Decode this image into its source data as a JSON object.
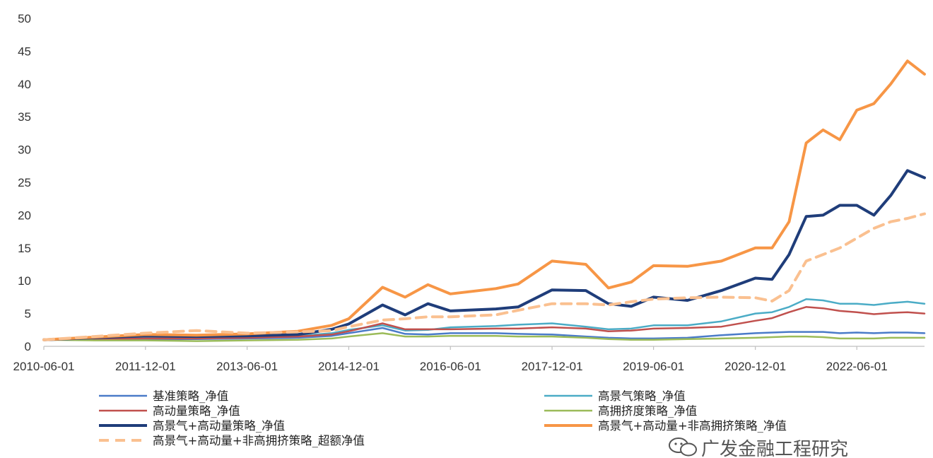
{
  "chart_data": {
    "type": "line",
    "title": "",
    "xlabel": "",
    "ylabel": "",
    "ylim": [
      0,
      50
    ],
    "yticks": [
      0,
      5,
      10,
      15,
      20,
      25,
      30,
      35,
      40,
      45,
      50
    ],
    "x_tick_labels": [
      "2010-06-01",
      "2011-12-01",
      "2013-06-01",
      "2014-12-01",
      "2016-06-01",
      "2017-12-01",
      "2019-06-01",
      "2020-12-01",
      "2022-06-01"
    ],
    "grid": false,
    "legend_position": "bottom",
    "x": [
      "2010-06-01",
      "2011-03-01",
      "2011-12-01",
      "2012-09-01",
      "2013-06-01",
      "2014-03-01",
      "2014-09-01",
      "2014-12-01",
      "2015-06-01",
      "2015-10-01",
      "2016-02-01",
      "2016-06-01",
      "2017-02-01",
      "2017-06-01",
      "2017-12-01",
      "2018-06-01",
      "2018-10-01",
      "2019-02-01",
      "2019-06-01",
      "2019-12-01",
      "2020-06-01",
      "2020-12-01",
      "2021-03-01",
      "2021-06-01",
      "2021-09-01",
      "2021-12-01",
      "2022-03-01",
      "2022-06-01",
      "2022-09-01",
      "2022-12-01",
      "2023-03-01",
      "2023-06-01"
    ],
    "series": [
      {
        "name": "基准策略_净值",
        "color": "#4a7bc8",
        "dash": false,
        "width": 2.5,
        "values": [
          1.0,
          1.0,
          1.1,
          1.1,
          1.2,
          1.3,
          1.6,
          2.0,
          2.8,
          1.9,
          1.8,
          2.0,
          2.0,
          1.9,
          1.8,
          1.5,
          1.3,
          1.2,
          1.2,
          1.3,
          1.7,
          2.0,
          2.1,
          2.2,
          2.2,
          2.2,
          2.0,
          2.1,
          2.0,
          2.1,
          2.1,
          2.0
        ]
      },
      {
        "name": "高景气策略_净值",
        "color": "#4bacc6",
        "dash": false,
        "width": 2.5,
        "values": [
          1.0,
          1.1,
          1.3,
          1.3,
          1.4,
          1.6,
          2.0,
          2.5,
          3.2,
          2.4,
          2.5,
          2.9,
          3.1,
          3.3,
          3.5,
          3.0,
          2.6,
          2.7,
          3.2,
          3.2,
          3.8,
          5.0,
          5.2,
          6.0,
          7.2,
          7.0,
          6.5,
          6.5,
          6.3,
          6.6,
          6.8,
          6.5
        ]
      },
      {
        "name": "高动量策略_净值",
        "color": "#c0504d",
        "dash": false,
        "width": 2.5,
        "values": [
          1.0,
          1.1,
          1.2,
          1.2,
          1.3,
          1.5,
          1.8,
          2.3,
          3.5,
          2.6,
          2.6,
          2.6,
          2.7,
          2.7,
          2.9,
          2.7,
          2.3,
          2.4,
          2.7,
          2.8,
          3.0,
          3.9,
          4.3,
          5.2,
          6.0,
          5.8,
          5.4,
          5.2,
          4.9,
          5.1,
          5.2,
          5.0
        ]
      },
      {
        "name": "高拥挤度策略_净值",
        "color": "#9bbb59",
        "dash": false,
        "width": 2.5,
        "values": [
          1.0,
          0.9,
          0.9,
          0.8,
          0.9,
          1.0,
          1.2,
          1.5,
          2.0,
          1.5,
          1.5,
          1.6,
          1.6,
          1.5,
          1.5,
          1.3,
          1.1,
          1.0,
          1.0,
          1.1,
          1.2,
          1.3,
          1.4,
          1.5,
          1.5,
          1.4,
          1.2,
          1.2,
          1.2,
          1.3,
          1.3,
          1.3
        ]
      },
      {
        "name": "高景气+高动量策略_净值",
        "color": "#1f3d7a",
        "dash": false,
        "width": 4,
        "values": [
          1.0,
          1.3,
          1.6,
          1.5,
          1.6,
          1.8,
          2.6,
          3.4,
          6.3,
          4.8,
          6.5,
          5.4,
          5.7,
          6.0,
          8.6,
          8.5,
          6.5,
          6.1,
          7.5,
          7.0,
          8.5,
          10.4,
          10.2,
          14.0,
          19.8,
          20.0,
          21.5,
          21.5,
          20.0,
          23.0,
          26.8,
          25.7
        ]
      },
      {
        "name": "高景气+高动量+非高拥挤策略_净值",
        "color": "#f79646",
        "dash": false,
        "width": 4,
        "values": [
          1.0,
          1.4,
          1.8,
          1.7,
          1.9,
          2.3,
          3.2,
          4.2,
          9.0,
          7.5,
          9.4,
          8.0,
          8.8,
          9.5,
          13.0,
          12.5,
          8.9,
          9.8,
          12.3,
          12.2,
          13.0,
          15.0,
          15.0,
          19.0,
          31.0,
          33.0,
          31.5,
          36.0,
          37.0,
          40.0,
          43.5,
          41.5
        ]
      },
      {
        "name": "高景气+高动量+非高拥挤策略_超额净值",
        "color": "#fac090",
        "dash": true,
        "width": 4,
        "values": [
          1.0,
          1.5,
          2.0,
          2.4,
          2.0,
          2.2,
          2.4,
          3.0,
          4.0,
          4.2,
          4.5,
          4.5,
          4.8,
          5.5,
          6.5,
          6.5,
          6.3,
          6.8,
          7.2,
          7.4,
          7.5,
          7.4,
          6.9,
          8.5,
          13.0,
          14.0,
          15.0,
          16.5,
          18.0,
          19.0,
          19.5,
          20.2
        ]
      }
    ]
  },
  "watermark": {
    "text": "广发金融工程研究"
  }
}
